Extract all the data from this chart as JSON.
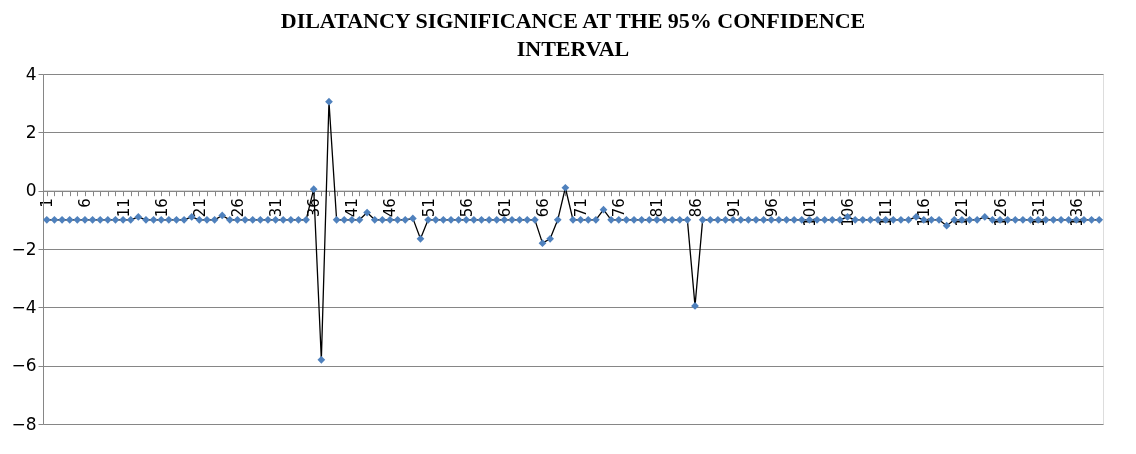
{
  "chart_data": {
    "type": "line",
    "title": "DILATANCY SIGNIFICANCE AT THE 95% CONFIDENCE INTERVAL",
    "categories": [
      "1",
      null,
      null,
      null,
      null,
      "6",
      null,
      null,
      null,
      null,
      "11",
      null,
      null,
      null,
      null,
      "16",
      null,
      null,
      null,
      null,
      "21",
      null,
      null,
      null,
      null,
      "26",
      null,
      null,
      null,
      null,
      "31",
      null,
      null,
      null,
      null,
      "36",
      null,
      null,
      null,
      null,
      "41",
      null,
      null,
      null,
      null,
      "46",
      null,
      null,
      null,
      null,
      "51",
      null,
      null,
      null,
      null,
      "56",
      null,
      null,
      null,
      null,
      "61",
      null,
      null,
      null,
      null,
      "66",
      null,
      null,
      null,
      null,
      "71",
      null,
      null,
      null,
      null,
      "76",
      null,
      null,
      null,
      null,
      "81",
      null,
      null,
      null,
      null,
      "86",
      null,
      null,
      null,
      null,
      "91",
      null,
      null,
      null,
      null,
      "96",
      null,
      null,
      null,
      null,
      "101",
      null,
      null,
      null,
      null,
      "106",
      null,
      null,
      null,
      null,
      "111",
      null,
      null,
      null,
      null,
      "116",
      null,
      null,
      null,
      null,
      "121",
      null,
      null,
      null,
      null,
      "126",
      null,
      null,
      null,
      null,
      "131",
      null,
      null,
      null,
      null,
      "136",
      null,
      null,
      null
    ],
    "series": [
      {
        "color": "#4f81bd",
        "values": [
          -1,
          -1,
          -1,
          -1,
          -1,
          -1,
          -1,
          -1,
          -1,
          -1,
          -1,
          -1,
          -0.9,
          -1,
          -1,
          -1,
          -1,
          -1,
          -1,
          -0.9,
          -1,
          -1,
          -1,
          -0.85,
          -1,
          -1,
          -1,
          -1,
          -1,
          -1,
          -1,
          -1,
          -1,
          -1,
          -1,
          0.05,
          -5.8,
          3.05,
          -1,
          -1,
          -1,
          -1,
          -0.75,
          -1,
          -1,
          -1,
          -1,
          -1,
          -0.95,
          -1.65,
          -1,
          -1,
          -1,
          -1,
          -1,
          -1,
          -1,
          -1,
          -1,
          -1,
          -1,
          -1,
          -1,
          -1,
          -1,
          -1.8,
          -1.65,
          -1,
          0.1,
          -1,
          -1,
          -1,
          -1,
          -0.65,
          -1,
          -1,
          -1,
          -1,
          -1,
          -1,
          -1,
          -1,
          -1,
          -1,
          -1,
          -3.95,
          -1,
          -1,
          -1,
          -1,
          -1,
          -1,
          -1,
          -1,
          -1,
          -1,
          -1,
          -1,
          -1,
          -1,
          -1,
          -1,
          -1,
          -1,
          -1,
          -0.9,
          -1,
          -1,
          -1,
          -1,
          -1,
          -1,
          -1,
          -1,
          -0.9,
          -1,
          -1,
          -1,
          -1.2,
          -1,
          -1,
          -1,
          -1,
          -0.9,
          -1,
          -1,
          -1,
          -1,
          -1,
          -1,
          -1,
          -1,
          -1,
          -1,
          -1,
          -1,
          -1,
          -1,
          -1
        ]
      }
    ],
    "ylim": [
      -8,
      4
    ],
    "yticks": [
      -8,
      -6,
      -4,
      -2,
      0,
      2,
      4
    ],
    "grid": "y",
    "marker": "diamond",
    "line_style": "solid"
  }
}
